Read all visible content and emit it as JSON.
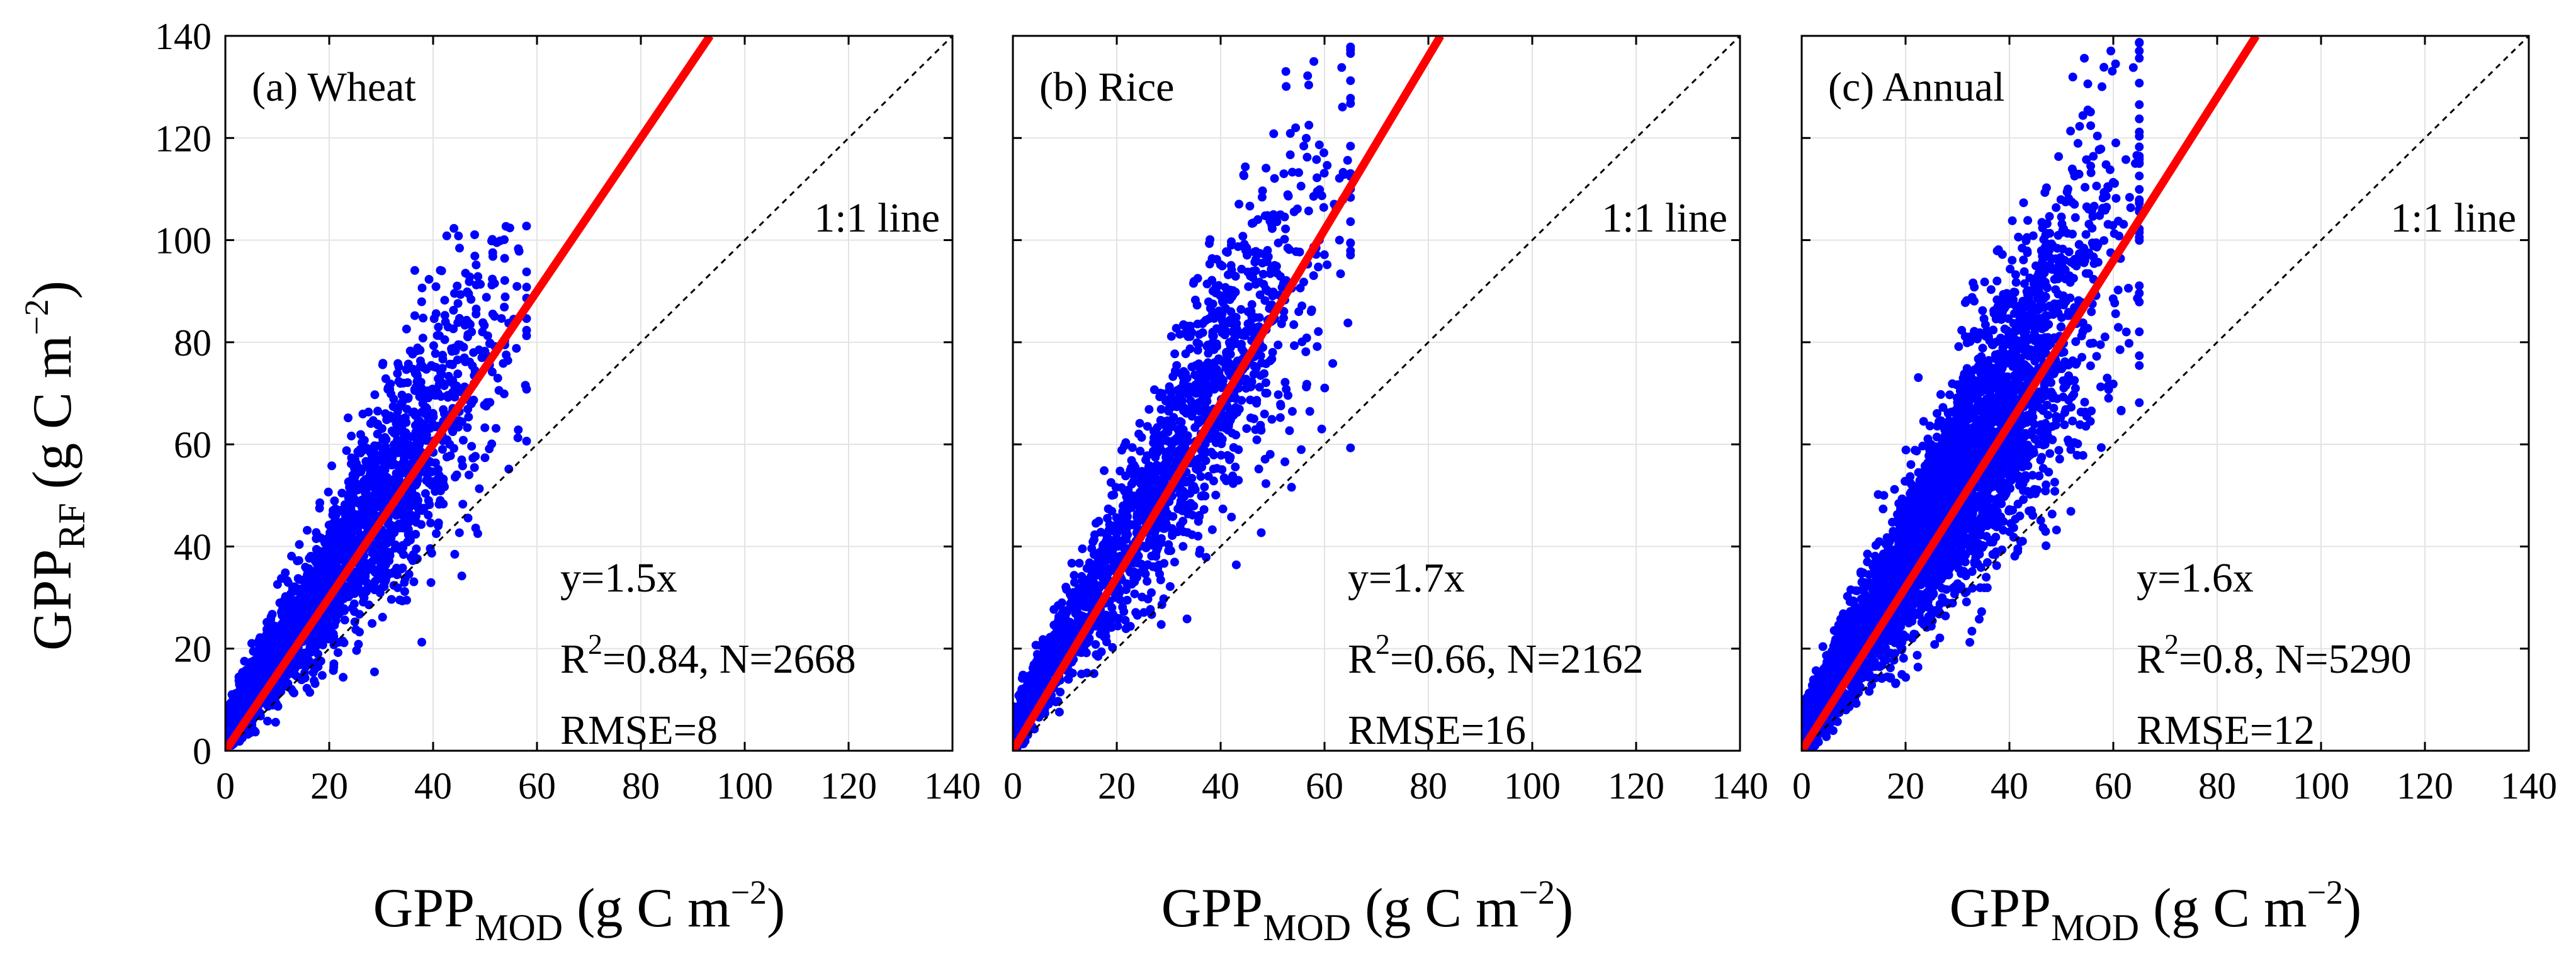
{
  "chart_data": [
    {
      "type": "scatter",
      "panel_label": "(a) Wheat",
      "series": [
        {
          "name": "samples",
          "color": "#0000ff",
          "count": 2668
        },
        {
          "name": "fit",
          "color": "#ff0000",
          "slope": 1.5
        },
        {
          "name": "1:1 line",
          "color": "#000000",
          "slope": 1.0
        }
      ],
      "point_cloud": {
        "x_range": [
          0,
          58
        ],
        "y_max": 103,
        "slope": 1.5,
        "density_center_x": 25
      },
      "annotations": {
        "one_to_one": "1:1 line",
        "equation": "y=1.5x",
        "r2_prefix": "R",
        "r2_sup": "2",
        "r2_rest": "=0.84, N=2668",
        "rmse": "RMSE=8"
      },
      "xlim": [
        0,
        140
      ],
      "ylim": [
        0,
        140
      ],
      "xticks": [
        0,
        20,
        40,
        60,
        80,
        100,
        120,
        140
      ],
      "yticks": [
        0,
        20,
        40,
        60,
        80,
        100,
        120,
        140
      ],
      "grid": true
    },
    {
      "type": "scatter",
      "panel_label": "(b) Rice",
      "series": [
        {
          "name": "samples",
          "color": "#0000ff",
          "count": 2162
        },
        {
          "name": "fit",
          "color": "#ff0000",
          "slope": 1.7
        },
        {
          "name": "1:1 line",
          "color": "#000000",
          "slope": 1.0
        }
      ],
      "point_cloud": {
        "x_range": [
          0,
          65
        ],
        "y_max": 139,
        "slope": 1.7,
        "density_center_x": 30
      },
      "annotations": {
        "one_to_one": "1:1 line",
        "equation": "y=1.7x",
        "r2_prefix": "R",
        "r2_sup": "2",
        "r2_rest": "=0.66, N=2162",
        "rmse": "RMSE=16"
      },
      "xlim": [
        0,
        140
      ],
      "ylim": [
        0,
        140
      ],
      "xticks": [
        0,
        20,
        40,
        60,
        80,
        100,
        120,
        140
      ],
      "yticks": [
        0,
        20,
        40,
        60,
        80,
        100,
        120,
        140
      ],
      "grid": true
    },
    {
      "type": "scatter",
      "panel_label": "(c) Annual",
      "series": [
        {
          "name": "samples",
          "color": "#0000ff",
          "count": 5290
        },
        {
          "name": "fit",
          "color": "#ff0000",
          "slope": 1.6
        },
        {
          "name": "1:1 line",
          "color": "#000000",
          "slope": 1.0
        }
      ],
      "point_cloud": {
        "x_range": [
          0,
          65
        ],
        "y_max": 139,
        "slope": 1.6,
        "density_center_x": 28
      },
      "annotations": {
        "one_to_one": "1:1 line",
        "equation": "y=1.6x",
        "r2_prefix": "R",
        "r2_sup": "2",
        "r2_rest": "=0.8, N=5290",
        "rmse": "RMSE=12"
      },
      "xlim": [
        0,
        140
      ],
      "ylim": [
        0,
        140
      ],
      "xticks": [
        0,
        20,
        40,
        60,
        80,
        100,
        120,
        140
      ],
      "yticks": [
        0,
        20,
        40,
        60,
        80,
        100,
        120,
        140
      ],
      "grid": true
    }
  ],
  "axes": {
    "xlabel": {
      "main": "GPP",
      "sub": "MOD",
      "unit_pre": " (g C m",
      "sup": "−2",
      "unit_post": ")"
    },
    "ylabel": {
      "main": "GPP",
      "sub": "RF",
      "unit_pre": " (g C m",
      "sup": "−2",
      "unit_post": ")"
    }
  }
}
